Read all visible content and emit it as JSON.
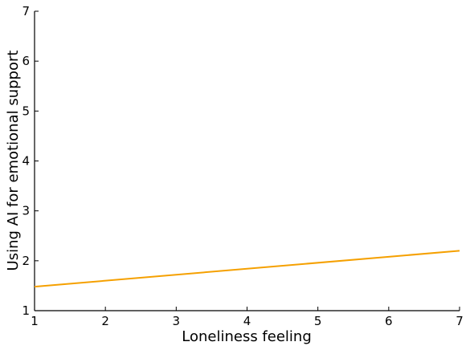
{
  "chart_data": {
    "type": "line",
    "title": "",
    "xlabel": "Loneliness feeling",
    "ylabel": "Using AI for emotional support",
    "xlim": [
      1,
      7
    ],
    "ylim": [
      1,
      7
    ],
    "xticks": [
      "1",
      "2",
      "3",
      "4",
      "5",
      "6",
      "7"
    ],
    "yticks": [
      "1",
      "2",
      "3",
      "4",
      "5",
      "6",
      "7"
    ],
    "grid": false,
    "legend": "none",
    "series": [
      {
        "color": "#f5a000",
        "x": [
          1,
          7
        ],
        "y": [
          1.48,
          2.2
        ]
      }
    ],
    "axis_color": "#000000"
  }
}
